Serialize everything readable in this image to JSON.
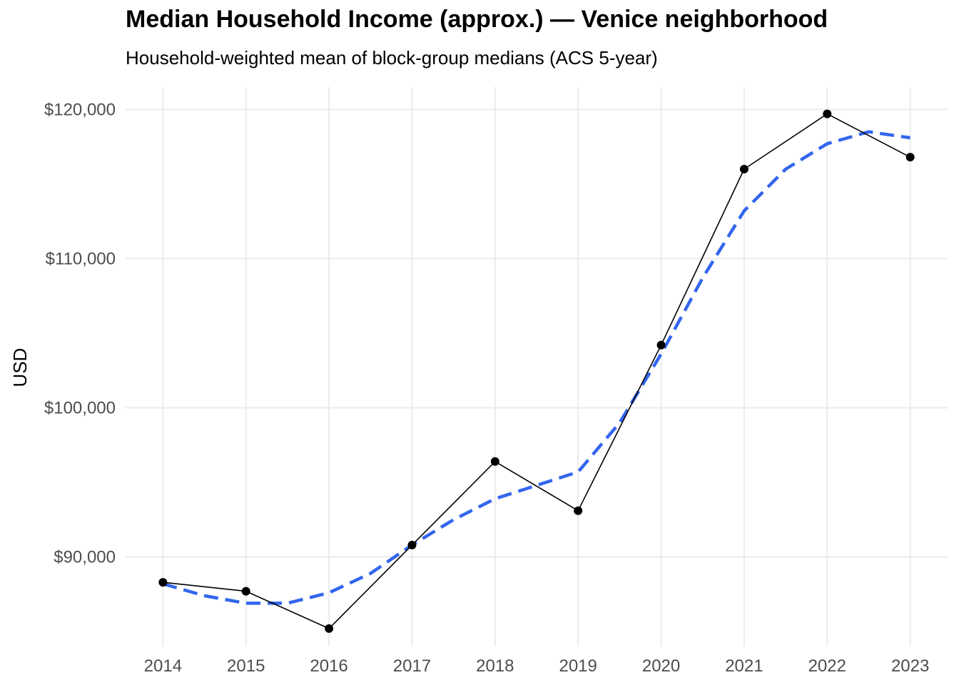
{
  "chart_data": {
    "type": "line",
    "title": "Median Household Income (approx.) — Venice neighborhood",
    "subtitle": "Household-weighted mean of block-group medians (ACS 5-year)",
    "xlabel": "",
    "ylabel": "USD",
    "x": [
      2014,
      2015,
      2016,
      2017,
      2018,
      2019,
      2020,
      2021,
      2022,
      2023
    ],
    "x_tick_labels": [
      "2014",
      "2015",
      "2016",
      "2017",
      "2018",
      "2019",
      "2020",
      "2021",
      "2022",
      "2023"
    ],
    "y_ticks": [
      90000,
      100000,
      110000,
      120000
    ],
    "y_tick_labels": [
      "$90,000",
      "$100,000",
      "$110,000",
      "$120,000"
    ],
    "ylim": [
      84000,
      121500
    ],
    "xlim": [
      2013.55,
      2023.45
    ],
    "grid": true,
    "legend": "none",
    "series": [
      {
        "values": [
          88300,
          87700,
          85200,
          90800,
          96400,
          93100,
          104200,
          116000,
          119700,
          116800
        ],
        "color": "#000000",
        "style": "solid",
        "markers": true
      },
      {
        "x": [
          2014,
          2014.5,
          2015,
          2015.5,
          2016,
          2016.5,
          2017,
          2017.5,
          2018,
          2018.5,
          2019,
          2019.5,
          2020,
          2020.5,
          2021,
          2021.5,
          2022,
          2022.5,
          2023
        ],
        "values": [
          88200,
          87400,
          86900,
          86900,
          87600,
          88900,
          90800,
          92500,
          93900,
          94800,
          95700,
          99000,
          103600,
          108700,
          113200,
          116000,
          117700,
          118500,
          118100
        ],
        "color": "#3366ee",
        "style": "dashed",
        "markers": false
      }
    ]
  }
}
